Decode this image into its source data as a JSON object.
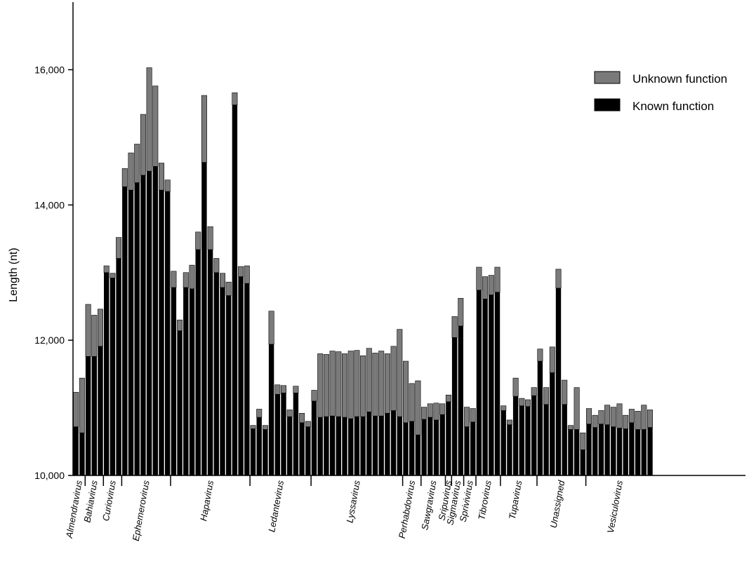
{
  "chart_data": {
    "type": "bar",
    "stacked": true,
    "ylabel": "Length (nt)",
    "ylim": [
      10000,
      17000
    ],
    "yticks": [
      {
        "value": 10000,
        "label": "10,000"
      },
      {
        "value": 12000,
        "label": "12,000"
      },
      {
        "value": 14000,
        "label": "14,000"
      },
      {
        "value": 16000,
        "label": "16,000"
      }
    ],
    "grid": false,
    "legend_position": "top-right",
    "colors": {
      "known": "#000000",
      "unknown": "#7a7a7a"
    },
    "series": [
      {
        "name": "Unknown function",
        "key": "unknown"
      },
      {
        "name": "Known function",
        "key": "known"
      }
    ],
    "groups": [
      {
        "name": "Almendravirus",
        "bars": [
          [
            10720,
            11230
          ],
          [
            10630,
            11440
          ]
        ]
      },
      {
        "name": "Bahiavirus",
        "bars": [
          [
            11760,
            12530
          ],
          [
            11760,
            12370
          ],
          [
            11910,
            12460
          ]
        ]
      },
      {
        "name": "Curiovirus",
        "bars": [
          [
            13000,
            13100
          ],
          [
            12920,
            12990
          ],
          [
            13210,
            13520
          ]
        ]
      },
      {
        "name": "Ephemerovirus",
        "bars": [
          [
            14270,
            14540
          ],
          [
            14220,
            14770
          ],
          [
            14330,
            14900
          ],
          [
            14440,
            15340
          ],
          [
            14500,
            16030
          ],
          [
            14570,
            15760
          ],
          [
            14220,
            14620
          ],
          [
            14200,
            14370
          ]
        ]
      },
      {
        "name": "Hapavirus",
        "bars": [
          [
            12780,
            13020
          ],
          [
            12140,
            12300
          ],
          [
            12780,
            13000
          ],
          [
            12760,
            13110
          ],
          [
            13340,
            13600
          ],
          [
            14630,
            15620
          ],
          [
            13340,
            13680
          ],
          [
            13000,
            13210
          ],
          [
            12780,
            12990
          ],
          [
            12660,
            12860
          ],
          [
            15480,
            15660
          ],
          [
            12940,
            13090
          ],
          [
            12840,
            13100
          ]
        ]
      },
      {
        "name": "Ledantevirus",
        "bars": [
          [
            10690,
            10740
          ],
          [
            10860,
            10980
          ],
          [
            10680,
            10740
          ],
          [
            11940,
            12430
          ],
          [
            11200,
            11340
          ],
          [
            11220,
            11330
          ],
          [
            10870,
            10970
          ],
          [
            11220,
            11320
          ],
          [
            10780,
            10920
          ],
          [
            10720,
            10800
          ]
        ]
      },
      {
        "name": "Lyssavirus",
        "bars": [
          [
            11100,
            11260
          ],
          [
            10860,
            11800
          ],
          [
            10870,
            11790
          ],
          [
            10880,
            11840
          ],
          [
            10870,
            11830
          ],
          [
            10860,
            11800
          ],
          [
            10840,
            11840
          ],
          [
            10870,
            11850
          ],
          [
            10870,
            11770
          ],
          [
            10940,
            11880
          ],
          [
            10880,
            11810
          ],
          [
            10880,
            11840
          ],
          [
            10920,
            11800
          ],
          [
            10960,
            11910
          ],
          [
            10870,
            12160
          ]
        ]
      },
      {
        "name": "Perhabdovirus",
        "bars": [
          [
            10780,
            11690
          ],
          [
            10800,
            11360
          ],
          [
            10600,
            11400
          ]
        ]
      },
      {
        "name": "Sawgravirus",
        "bars": [
          [
            10830,
            11010
          ],
          [
            10860,
            11060
          ],
          [
            10820,
            11070
          ],
          [
            10900,
            11060
          ]
        ]
      },
      {
        "name": "Sripuvirus",
        "bars": [
          [
            11090,
            11190
          ]
        ]
      },
      {
        "name": "Sigmavirus",
        "bars": [
          [
            12040,
            12350
          ],
          [
            12210,
            12620
          ]
        ]
      },
      {
        "name": "Sprivivirus",
        "bars": [
          [
            10720,
            11010
          ],
          [
            10790,
            10990
          ]
        ]
      },
      {
        "name": "Tibrovirus",
        "bars": [
          [
            12740,
            13080
          ],
          [
            12610,
            12940
          ],
          [
            12670,
            12960
          ],
          [
            12710,
            13080
          ]
        ]
      },
      {
        "name": "Tupavirus",
        "bars": [
          [
            10960,
            11030
          ],
          [
            10750,
            10820
          ],
          [
            11170,
            11440
          ],
          [
            11030,
            11140
          ],
          [
            11020,
            11120
          ],
          [
            11180,
            11300
          ]
        ]
      },
      {
        "name": "Unassigned",
        "bars": [
          [
            11690,
            11870
          ],
          [
            11050,
            11300
          ],
          [
            11520,
            11900
          ],
          [
            12770,
            13050
          ],
          [
            11050,
            11410
          ],
          [
            10680,
            10740
          ],
          [
            10680,
            11300
          ],
          [
            10380,
            10630
          ]
        ]
      },
      {
        "name": "Vesiculovirus",
        "bars": [
          [
            10760,
            10990
          ],
          [
            10710,
            10890
          ],
          [
            10760,
            10960
          ],
          [
            10750,
            11040
          ],
          [
            10720,
            11010
          ],
          [
            10700,
            11060
          ],
          [
            10690,
            10890
          ],
          [
            10780,
            10980
          ],
          [
            10680,
            10950
          ],
          [
            10680,
            11040
          ],
          [
            10710,
            10970
          ]
        ]
      }
    ]
  }
}
